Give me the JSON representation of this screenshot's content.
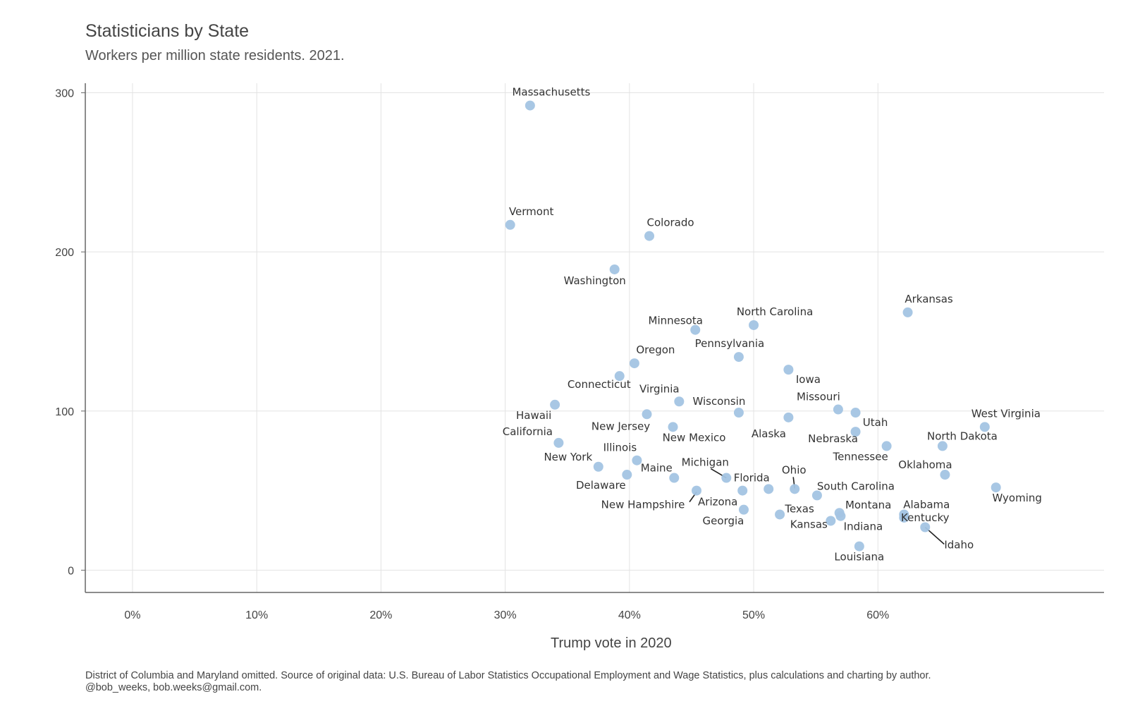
{
  "chart_data": {
    "type": "scatter",
    "title": "Statisticians by State",
    "subtitle": "Workers per million state residents. 2021.",
    "xlabel": "Trump vote in 2020",
    "ylabel": "",
    "xlim": [
      -0.038,
      0.782
    ],
    "ylim": [
      -14,
      306
    ],
    "x_ticks": [
      0,
      0.1,
      0.2,
      0.3,
      0.4,
      0.5,
      0.6
    ],
    "x_tick_labels": [
      "0%",
      "10%",
      "20%",
      "30%",
      "40%",
      "50%",
      "60%"
    ],
    "y_ticks": [
      0,
      100,
      200,
      300
    ],
    "y_tick_labels": [
      "0",
      "100",
      "200",
      "300"
    ],
    "grid": true,
    "point_color": "#a3c4e3",
    "points": [
      {
        "label": "Massachusetts",
        "x": 0.32,
        "y": 292
      },
      {
        "label": "Vermont",
        "x": 0.304,
        "y": 217
      },
      {
        "label": "Colorado",
        "x": 0.416,
        "y": 210
      },
      {
        "label": "Washington",
        "x": 0.388,
        "y": 189
      },
      {
        "label": "Arkansas",
        "x": 0.624,
        "y": 162
      },
      {
        "label": "North Carolina",
        "x": 0.5,
        "y": 154
      },
      {
        "label": "Minnesota",
        "x": 0.453,
        "y": 151
      },
      {
        "label": "Pennsylvania",
        "x": 0.488,
        "y": 134
      },
      {
        "label": "Oregon",
        "x": 0.404,
        "y": 130
      },
      {
        "label": "Iowa",
        "x": 0.528,
        "y": 126
      },
      {
        "label": "Connecticut",
        "x": 0.392,
        "y": 122
      },
      {
        "label": "Virginia",
        "x": 0.44,
        "y": 106
      },
      {
        "label": "Hawaii",
        "x": 0.34,
        "y": 104
      },
      {
        "label": "Missouri",
        "x": 0.568,
        "y": 101
      },
      {
        "label": "Utah",
        "x": 0.582,
        "y": 99
      },
      {
        "label": "Wisconsin",
        "x": 0.488,
        "y": 99
      },
      {
        "label": "New Jersey",
        "x": 0.414,
        "y": 98
      },
      {
        "label": "Alaska",
        "x": 0.528,
        "y": 96
      },
      {
        "label": "West Virginia",
        "x": 0.686,
        "y": 90
      },
      {
        "label": "New Mexico",
        "x": 0.435,
        "y": 90
      },
      {
        "label": "Nebraska",
        "x": 0.582,
        "y": 87
      },
      {
        "label": "California",
        "x": 0.343,
        "y": 80
      },
      {
        "label": "Tennessee",
        "x": 0.607,
        "y": 78
      },
      {
        "label": "North Dakota",
        "x": 0.652,
        "y": 78
      },
      {
        "label": "Illinois",
        "x": 0.406,
        "y": 69
      },
      {
        "label": "New York",
        "x": 0.375,
        "y": 65
      },
      {
        "label": "Oklahoma",
        "x": 0.654,
        "y": 60
      },
      {
        "label": "Delaware",
        "x": 0.398,
        "y": 60
      },
      {
        "label": "Maine",
        "x": 0.436,
        "y": 58
      },
      {
        "label": "Michigan",
        "x": 0.478,
        "y": 58
      },
      {
        "label": "Wyoming",
        "x": 0.695,
        "y": 52
      },
      {
        "label": "Ohio",
        "x": 0.533,
        "y": 51
      },
      {
        "label": "South Carolina",
        "x": 0.551,
        "y": 47
      },
      {
        "label": "New Hampshire",
        "x": 0.454,
        "y": 50
      },
      {
        "label": "Florida",
        "x": 0.512,
        "y": 51
      },
      {
        "label": "Arizona",
        "x": 0.491,
        "y": 50
      },
      {
        "label": "Georgia",
        "x": 0.492,
        "y": 38
      },
      {
        "label": "Montana",
        "x": 0.569,
        "y": 36
      },
      {
        "label": "Alabama",
        "x": 0.621,
        "y": 35
      },
      {
        "label": "Texas",
        "x": 0.521,
        "y": 35
      },
      {
        "label": "Indiana",
        "x": 0.57,
        "y": 34
      },
      {
        "label": "Kentucky",
        "x": 0.621,
        "y": 33
      },
      {
        "label": "Kansas",
        "x": 0.562,
        "y": 31
      },
      {
        "label": "Idaho",
        "x": 0.638,
        "y": 27
      },
      {
        "label": "Louisiana",
        "x": 0.585,
        "y": 15
      }
    ]
  },
  "caption": {
    "line1": "District of Columbia and Maryland omitted. Source of original data: U.S. Bureau of Labor Statistics Occupational Employment and Wage Statistics, plus calculations and charting by author.",
    "line2": "@bob_weeks, bob.weeks@gmail.com."
  }
}
